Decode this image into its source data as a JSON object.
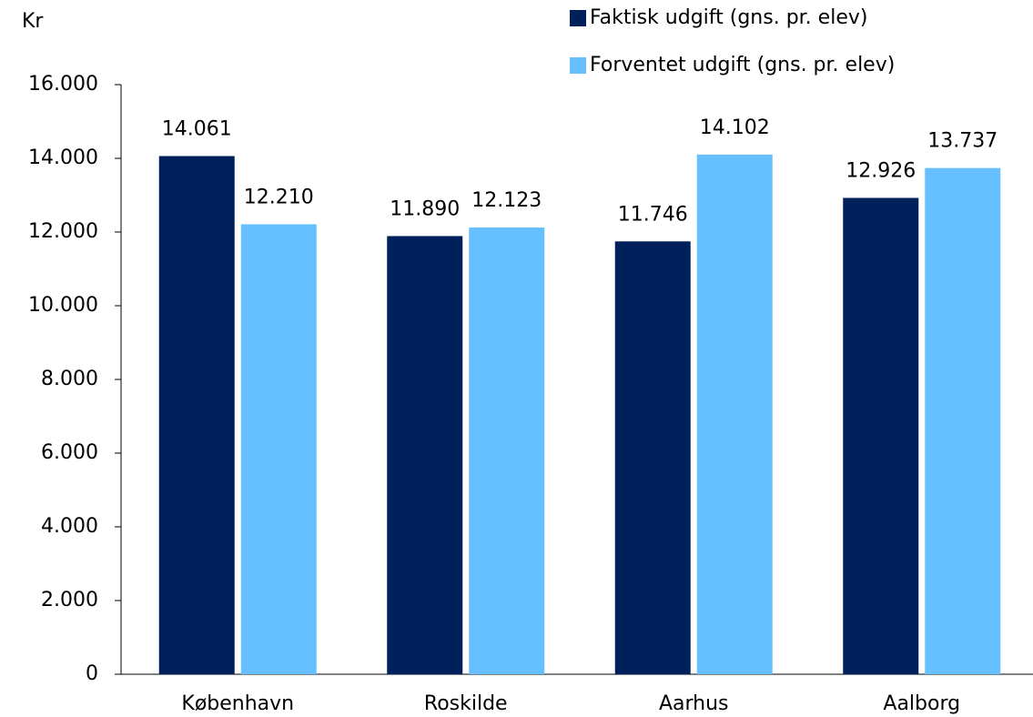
{
  "chart_data": {
    "type": "bar",
    "y_label": "Kr",
    "categories": [
      "København",
      "Roskilde",
      "Aarhus",
      "Aalborg"
    ],
    "series": [
      {
        "name": "Faktisk udgift (gns. pr. elev)",
        "color": "#00205b",
        "values": [
          14061,
          11890,
          11746,
          12926
        ],
        "value_labels": [
          "14.061",
          "11.890",
          "11.746",
          "12.926"
        ]
      },
      {
        "name": "Forventet udgift (gns. pr. elev)",
        "color": "#66bfff",
        "values": [
          12210,
          12123,
          14102,
          13737
        ],
        "value_labels": [
          "12.210",
          "12.123",
          "14.102",
          "13.737"
        ]
      }
    ],
    "ylim": [
      0,
      16000
    ],
    "yticks": [
      0,
      {
        "value": 2000,
        "label": "2.000"
      },
      {
        "value": 4000,
        "label": "4.000"
      },
      {
        "value": 6000,
        "label": "6.000"
      },
      {
        "value": 8000,
        "label": "8.000"
      },
      {
        "value": 10000,
        "label": "10.000"
      },
      {
        "value": 12000,
        "label": "12.000"
      },
      {
        "value": 14000,
        "label": "14.000"
      },
      {
        "value": 16000,
        "label": "16.000"
      }
    ],
    "grid": false,
    "legend": "top-right"
  }
}
